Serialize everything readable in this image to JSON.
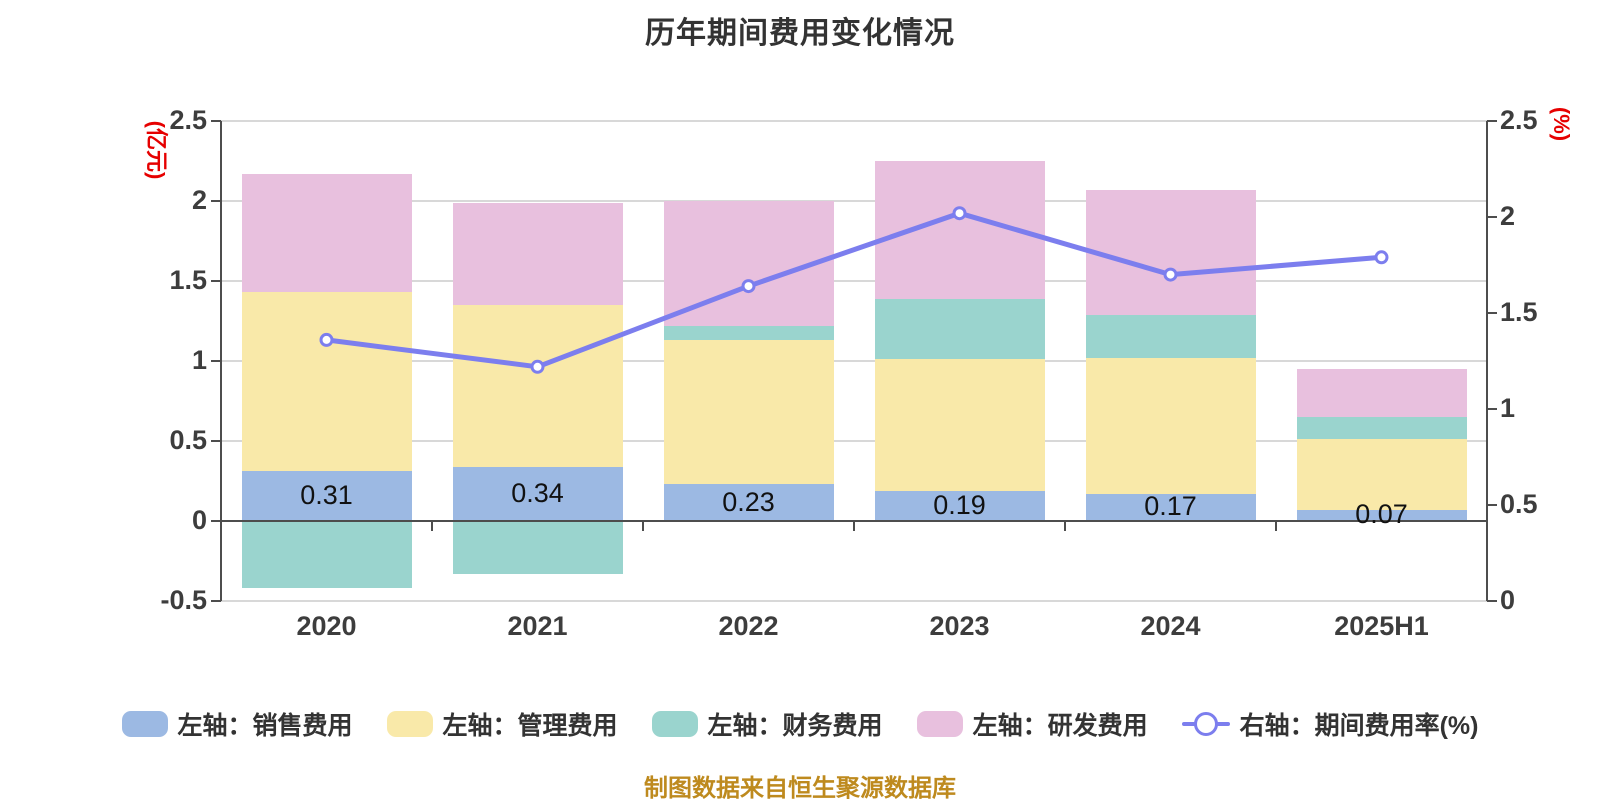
{
  "caption": "制图数据来自恒生聚源数据库",
  "chart_data": {
    "type": "bar",
    "subtype": "stacked-bars-with-right-axis-line",
    "title": "历年期间费用变化情况",
    "categories": [
      "2020",
      "2021",
      "2022",
      "2023",
      "2024",
      "2025H1"
    ],
    "series": [
      {
        "key": "sales",
        "name": "左轴：销售费用",
        "axis": "left",
        "color": "#9cb9e3",
        "values": [
          0.31,
          0.34,
          0.23,
          0.19,
          0.17,
          0.07
        ]
      },
      {
        "key": "admin",
        "name": "左轴：管理费用",
        "axis": "left",
        "color": "#f9e9a9",
        "values": [
          1.12,
          1.01,
          0.9,
          0.82,
          0.85,
          0.44
        ]
      },
      {
        "key": "finance",
        "name": "左轴：财务费用",
        "axis": "left",
        "color": "#9ad4ce",
        "values": [
          -0.42,
          -0.33,
          0.09,
          0.38,
          0.27,
          0.14
        ]
      },
      {
        "key": "rnd",
        "name": "左轴：研发费用",
        "axis": "left",
        "color": "#e8c0de",
        "values": [
          0.74,
          0.64,
          0.78,
          0.86,
          0.78,
          0.3
        ]
      }
    ],
    "line_series": {
      "key": "expense-rate",
      "name": "右轴：期间费用率(%)",
      "axis": "right",
      "color": "#7c7eee",
      "marker_fill": "#ffffff",
      "values": [
        1.36,
        1.22,
        1.64,
        2.02,
        1.7,
        1.79
      ]
    },
    "bar_value_labels": {
      "series_key": "sales",
      "labels": [
        "0.31",
        "0.34",
        "0.23",
        "0.19",
        "0.17",
        "0.07"
      ]
    },
    "left_axis": {
      "unit": "(亿元)",
      "min": -0.5,
      "max": 2.5,
      "tick_step": 0.5,
      "ticks": [
        "2.5",
        "2",
        "1.5",
        "1",
        "0.5",
        "0",
        "-0.5"
      ]
    },
    "right_axis": {
      "unit": "(%)",
      "min": 0,
      "max": 2.5,
      "tick_step": 0.5,
      "ticks": [
        "2.5",
        "2",
        "1.5",
        "1",
        "0.5",
        "0"
      ]
    },
    "grid": true,
    "legend_position": "bottom",
    "colors": {
      "axis_line": "#4d4d4d",
      "grid_line": "#d8d8d8",
      "tick_label": "#3d3d3d",
      "title": "#333333",
      "unit_label": "#e60000",
      "caption": "#be8a1e",
      "bar_label": "#111111"
    }
  }
}
